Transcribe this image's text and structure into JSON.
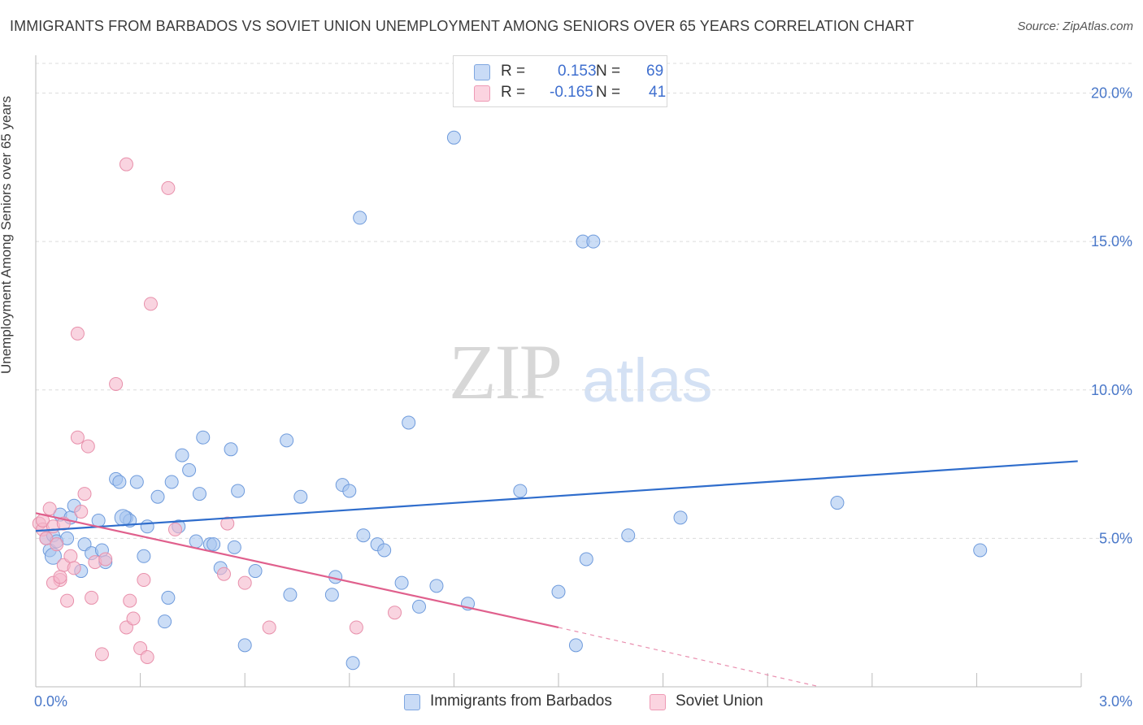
{
  "title": "IMMIGRANTS FROM BARBADOS VS SOVIET UNION UNEMPLOYMENT AMONG SENIORS OVER 65 YEARS CORRELATION CHART",
  "source": "Source: ZipAtlas.com",
  "watermark": {
    "zip": "ZIP",
    "atlas": "atlas"
  },
  "legend_top": {
    "rows": [
      {
        "r_label": "R =",
        "r_value": "0.153",
        "n_label": "N =",
        "n_value": "69",
        "color": "#a9c6f0"
      },
      {
        "r_label": "R =",
        "r_value": "-0.165",
        "n_label": "N =",
        "n_value": "41",
        "color": "#f5b8cb"
      }
    ]
  },
  "legend_bottom": {
    "items": [
      {
        "label": "Immigrants from Barbados",
        "color": "#a9c6f0"
      },
      {
        "label": "Soviet Union",
        "color": "#f5b8cb"
      }
    ]
  },
  "chart_data": {
    "type": "scatter",
    "title": "IMMIGRANTS FROM BARBADOS VS SOVIET UNION UNEMPLOYMENT AMONG SENIORS OVER 65 YEARS CORRELATION CHART",
    "xlabel": "",
    "ylabel": "Unemployment Among Seniors over 65 years",
    "xlim": [
      0,
      3.0
    ],
    "ylim": [
      0,
      21
    ],
    "x_tick_labels": [
      "0.0%",
      "3.0%"
    ],
    "y_ticks": [
      5,
      10,
      15,
      20
    ],
    "y_tick_labels": [
      "5.0%",
      "10.0%",
      "15.0%",
      "20.0%"
    ],
    "grid": true,
    "legend_placement": "top-center",
    "series": [
      {
        "name": "Immigrants from Barbados",
        "color": "#a9c6f0",
        "stroke": "#6f9bdc",
        "trend_color": "#2f6dcc",
        "trend": {
          "x": [
            0.0,
            2.99
          ],
          "y": [
            5.25,
            7.6
          ]
        },
        "points": [
          [
            0.03,
            5.0
          ],
          [
            0.04,
            4.6
          ],
          [
            0.05,
            5.1
          ],
          [
            0.06,
            4.9
          ],
          [
            0.07,
            5.8
          ],
          [
            0.09,
            5.0
          ],
          [
            0.1,
            5.7
          ],
          [
            0.11,
            6.1
          ],
          [
            0.13,
            3.9
          ],
          [
            0.14,
            4.8
          ],
          [
            0.16,
            4.5
          ],
          [
            0.18,
            5.6
          ],
          [
            0.19,
            4.6
          ],
          [
            0.2,
            4.2
          ],
          [
            0.23,
            7.0
          ],
          [
            0.24,
            6.9
          ],
          [
            0.26,
            5.7
          ],
          [
            0.27,
            5.6
          ],
          [
            0.29,
            6.9
          ],
          [
            0.31,
            4.4
          ],
          [
            0.32,
            5.4
          ],
          [
            0.35,
            6.4
          ],
          [
            0.37,
            2.2
          ],
          [
            0.38,
            3.0
          ],
          [
            0.39,
            6.9
          ],
          [
            0.41,
            5.4
          ],
          [
            0.42,
            7.8
          ],
          [
            0.44,
            7.3
          ],
          [
            0.46,
            4.9
          ],
          [
            0.47,
            6.5
          ],
          [
            0.48,
            8.4
          ],
          [
            0.5,
            4.8
          ],
          [
            0.51,
            4.8
          ],
          [
            0.53,
            4.0
          ],
          [
            0.56,
            8.0
          ],
          [
            0.57,
            4.7
          ],
          [
            0.58,
            6.6
          ],
          [
            0.6,
            1.4
          ],
          [
            0.63,
            3.9
          ],
          [
            0.72,
            8.3
          ],
          [
            0.73,
            3.1
          ],
          [
            0.76,
            6.4
          ],
          [
            0.85,
            3.1
          ],
          [
            0.86,
            3.7
          ],
          [
            0.88,
            6.8
          ],
          [
            0.9,
            6.6
          ],
          [
            0.91,
            0.8
          ],
          [
            0.93,
            15.8
          ],
          [
            0.94,
            5.1
          ],
          [
            0.98,
            4.8
          ],
          [
            1.0,
            4.6
          ],
          [
            1.05,
            3.5
          ],
          [
            1.07,
            8.9
          ],
          [
            1.1,
            2.7
          ],
          [
            1.15,
            3.4
          ],
          [
            1.2,
            18.5
          ],
          [
            1.24,
            2.8
          ],
          [
            1.39,
            6.6
          ],
          [
            1.5,
            3.2
          ],
          [
            1.55,
            1.4
          ],
          [
            1.57,
            15.0
          ],
          [
            1.6,
            15.0
          ],
          [
            1.58,
            4.3
          ],
          [
            1.7,
            5.1
          ],
          [
            1.85,
            5.7
          ],
          [
            2.3,
            6.2
          ],
          [
            2.71,
            4.6
          ],
          [
            0.05,
            4.4
          ],
          [
            0.25,
            5.7
          ]
        ],
        "sizes": [
          12,
          12,
          12,
          12,
          12,
          12,
          12,
          12,
          12,
          12,
          12,
          12,
          12,
          12,
          12,
          12,
          12,
          12,
          12,
          12,
          12,
          12,
          12,
          12,
          12,
          12,
          12,
          12,
          12,
          12,
          12,
          12,
          12,
          12,
          12,
          12,
          12,
          12,
          12,
          12,
          12,
          12,
          12,
          12,
          12,
          12,
          12,
          12,
          12,
          12,
          12,
          12,
          12,
          12,
          12,
          12,
          12,
          12,
          12,
          12,
          12,
          12,
          12,
          12,
          12,
          12,
          12,
          16,
          16
        ]
      },
      {
        "name": "Soviet Union",
        "color": "#f5b8cb",
        "stroke": "#e890ab",
        "trend_color": "#e0608d",
        "trend": {
          "x": [
            0.0,
            1.5
          ],
          "y": [
            5.85,
            2.0
          ]
        },
        "trend_dashed": {
          "x": [
            1.5,
            2.25
          ],
          "y": [
            2.0,
            0.0
          ]
        },
        "points": [
          [
            0.01,
            5.5
          ],
          [
            0.02,
            5.3
          ],
          [
            0.02,
            5.6
          ],
          [
            0.03,
            5.0
          ],
          [
            0.04,
            6.0
          ],
          [
            0.05,
            5.4
          ],
          [
            0.06,
            4.8
          ],
          [
            0.07,
            3.6
          ],
          [
            0.08,
            4.1
          ],
          [
            0.09,
            2.9
          ],
          [
            0.1,
            4.4
          ],
          [
            0.11,
            4.0
          ],
          [
            0.12,
            11.9
          ],
          [
            0.12,
            8.4
          ],
          [
            0.13,
            5.9
          ],
          [
            0.14,
            6.5
          ],
          [
            0.15,
            8.1
          ],
          [
            0.16,
            3.0
          ],
          [
            0.17,
            4.2
          ],
          [
            0.19,
            1.1
          ],
          [
            0.2,
            4.3
          ],
          [
            0.23,
            10.2
          ],
          [
            0.26,
            17.6
          ],
          [
            0.26,
            2.0
          ],
          [
            0.27,
            2.9
          ],
          [
            0.28,
            2.3
          ],
          [
            0.3,
            1.3
          ],
          [
            0.31,
            3.6
          ],
          [
            0.32,
            1.0
          ],
          [
            0.33,
            12.9
          ],
          [
            0.38,
            16.8
          ],
          [
            0.4,
            5.3
          ],
          [
            0.54,
            3.8
          ],
          [
            0.55,
            5.5
          ],
          [
            0.6,
            3.5
          ],
          [
            0.67,
            2.0
          ],
          [
            0.92,
            2.0
          ],
          [
            1.03,
            2.5
          ],
          [
            0.05,
            3.5
          ],
          [
            0.07,
            3.7
          ],
          [
            0.08,
            5.5
          ]
        ],
        "sizes": [
          12,
          12,
          12,
          12,
          12,
          12,
          12,
          12,
          12,
          12,
          12,
          12,
          12,
          12,
          12,
          12,
          12,
          12,
          12,
          12,
          12,
          12,
          12,
          12,
          12,
          12,
          12,
          12,
          12,
          12,
          12,
          12,
          12,
          12,
          12,
          12,
          12,
          12,
          12,
          12,
          12
        ]
      }
    ]
  }
}
